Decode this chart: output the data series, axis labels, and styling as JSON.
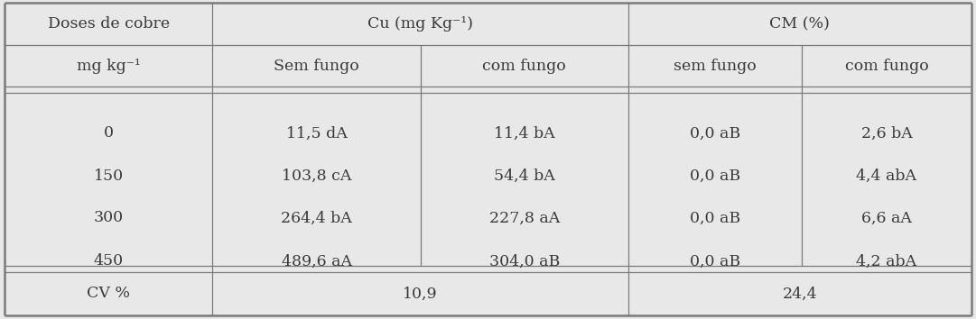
{
  "col1_header": "Doses de cobre",
  "col2_header": "Cu (mg Kg⁻¹)",
  "col3_header": "CM (%)",
  "row2_col1": "mg kg⁻¹",
  "row2_col2a": "Sem fungo",
  "row2_col2b": "com fungo",
  "row2_col3a": "sem fungo",
  "row2_col3b": "com fungo",
  "data_rows": [
    [
      "0",
      "11,5 dA",
      "11,4 bA",
      "0,0 aB",
      "2,6 bA"
    ],
    [
      "150",
      "103,8 cA",
      "54,4 bA",
      "0,0 aB",
      "4,4 abA"
    ],
    [
      "300",
      "264,4 bA",
      "227,8 aA",
      "0,0 aB",
      "6,6 aA"
    ],
    [
      "450",
      "489,6 aA",
      "304,0 aB",
      "0,0 aB",
      "4,2 abA"
    ]
  ],
  "cv_label": "CV %",
  "cv_cu": "10,9",
  "cv_cm": "24,4",
  "bg_color": "#e8e8e8",
  "text_color": "#3a3a3a",
  "line_color": "#7a7a7a",
  "font_size": 12.5,
  "font_family": "DejaVu Serif"
}
